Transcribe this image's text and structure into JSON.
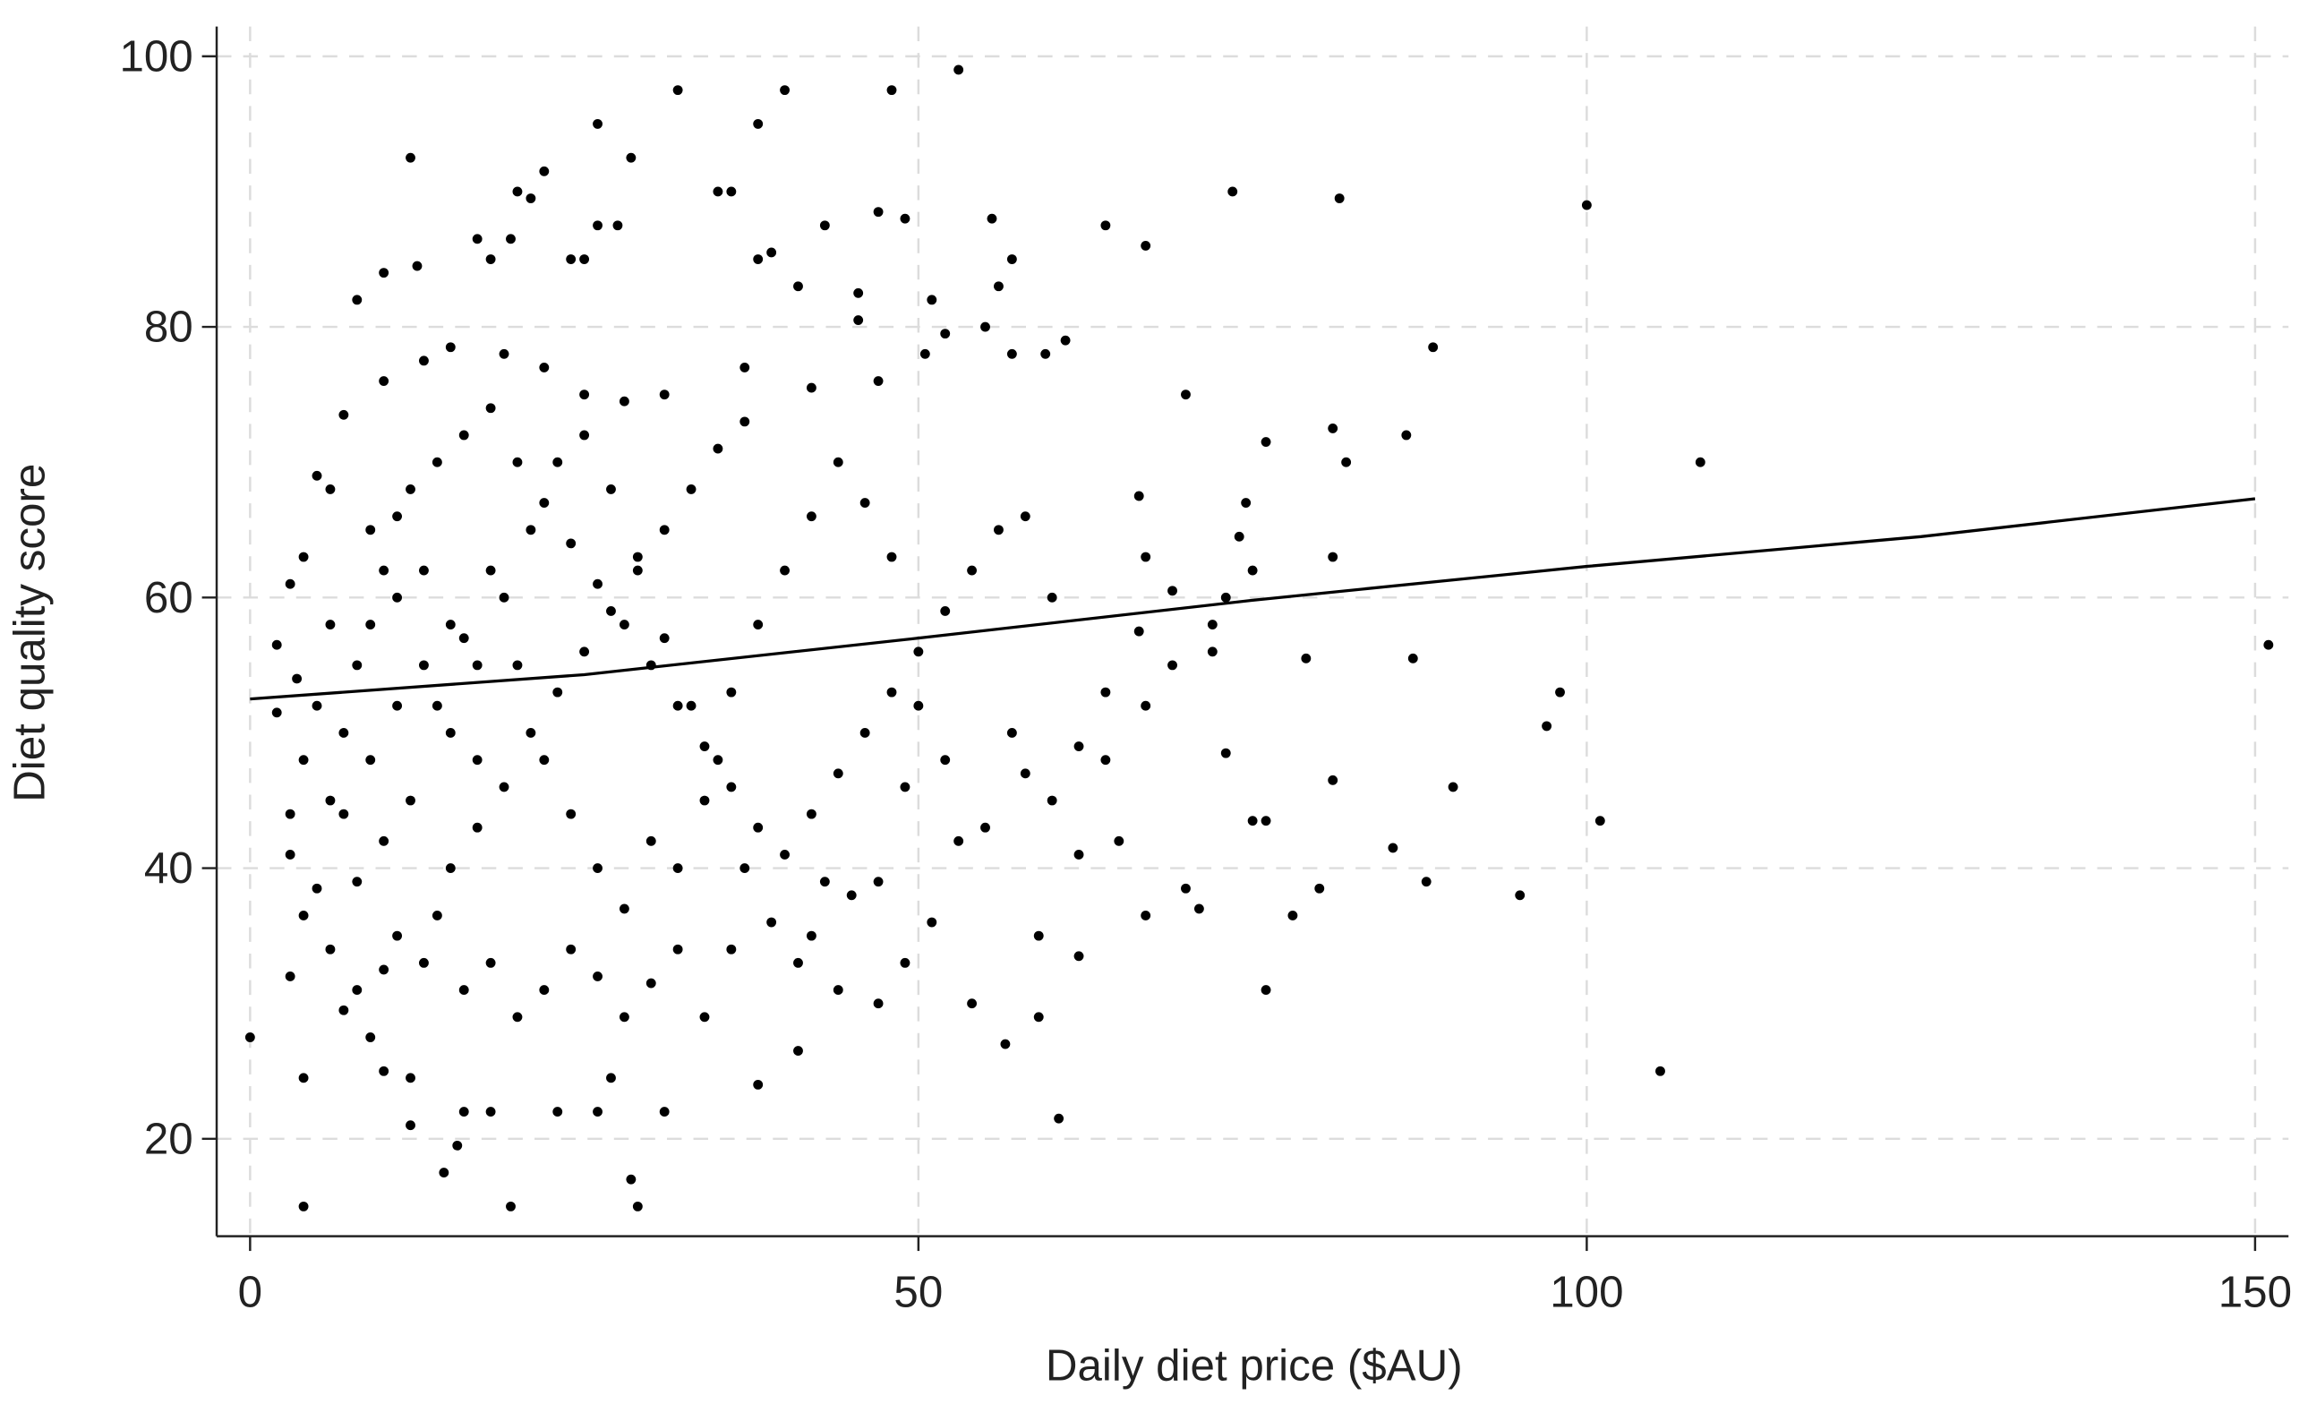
{
  "chart_data": {
    "type": "scatter",
    "x_label": "Daily diet price ($AU)",
    "y_label": "Diet quality score",
    "xlim": [
      -2.5,
      152.5
    ],
    "ylim": [
      12.8,
      102.2
    ],
    "xticks": [
      0,
      50,
      100,
      150
    ],
    "yticks": [
      20,
      40,
      60,
      80,
      100
    ],
    "grid": true,
    "series": [
      {
        "type": "scatter",
        "color": "#000000",
        "x": [
          0,
          4,
          29,
          19.5,
          28.5,
          14.5,
          15.5,
          12,
          16,
          18,
          23,
          26,
          31,
          4,
          10,
          12,
          27,
          38,
          41,
          60.5,
          56.5,
          54,
          59,
          76,
          105.5,
          95,
          88,
          78,
          80,
          67,
          71,
          70,
          62,
          85.5,
          90,
          101,
          97,
          98,
          81,
          75,
          76,
          73,
          87,
          79,
          65,
          64,
          67,
          72,
          69,
          72,
          73,
          75,
          74,
          74.5,
          76,
          70,
          81,
          82,
          86.5,
          88.5,
          81,
          66.5,
          67,
          69,
          66.5,
          100,
          81.5,
          73.5,
          67,
          64,
          108.5,
          151,
          53,
          48,
          40,
          32,
          38,
          26,
          12,
          28.5,
          22,
          20,
          21,
          47,
          49,
          43,
          55.5,
          26,
          27.5,
          17,
          19.5,
          18,
          24,
          25,
          8,
          10,
          12.5,
          35,
          36,
          38,
          39,
          41,
          45.5,
          51,
          57,
          56,
          45.5,
          52,
          55,
          57,
          59.5,
          61,
          47,
          50.5,
          42,
          37,
          31,
          28,
          25,
          22,
          19,
          15,
          13,
          10,
          7,
          5,
          6,
          3,
          2,
          3.5,
          2,
          4,
          3,
          3,
          5,
          4,
          6,
          3,
          7,
          9,
          8,
          10,
          11,
          13,
          14,
          16,
          18,
          20,
          22,
          24,
          26,
          28,
          30,
          32,
          34,
          36,
          15,
          17,
          19,
          21,
          23,
          25,
          27,
          29,
          31,
          33,
          35,
          37,
          9,
          11,
          13,
          15,
          17,
          12,
          10,
          8,
          6,
          7,
          8,
          9,
          10,
          11,
          12,
          14,
          16,
          18,
          20,
          22,
          24,
          26,
          28,
          30,
          32,
          34,
          36,
          38,
          40,
          42,
          44,
          46,
          48,
          50,
          52,
          54,
          56,
          58,
          60,
          62,
          57,
          55,
          52,
          49,
          47,
          45,
          43,
          41,
          39,
          37,
          35,
          33,
          31,
          29,
          27,
          25,
          23,
          21,
          19,
          17,
          15,
          13,
          11,
          9,
          7,
          5,
          6,
          4,
          14,
          16,
          18,
          20,
          22,
          24,
          26,
          28,
          30,
          32,
          34,
          36,
          38,
          40,
          42,
          44,
          46,
          48,
          50,
          53,
          58,
          60,
          62,
          64,
          49,
          47,
          44,
          42,
          51,
          59
        ],
        "values": [
          27.5,
          15,
          15,
          15,
          17,
          17.5,
          19.5,
          21,
          22,
          22,
          22,
          22,
          22,
          24.5,
          25,
          24.5,
          24.5,
          24,
          26.5,
          21.5,
          27,
          30,
          29,
          31,
          25,
          38,
          39,
          36.5,
          38.5,
          36.5,
          37,
          38.5,
          33.5,
          41.5,
          46,
          43.5,
          50.5,
          53,
          46.5,
          43.5,
          43.5,
          48.5,
          55.5,
          55.5,
          42,
          53,
          52,
          56,
          55,
          58,
          60,
          62,
          64.5,
          67,
          71.5,
          75,
          72.5,
          70,
          72,
          78.5,
          63,
          67.5,
          63,
          60.5,
          57.5,
          89,
          89.5,
          90,
          86,
          87.5,
          70,
          56.5,
          99,
          97.5,
          97.5,
          97.5,
          95,
          95,
          92.5,
          92.5,
          91.5,
          90,
          89.5,
          88.5,
          88,
          87.5,
          88,
          87.5,
          87.5,
          86.5,
          86.5,
          85,
          85,
          85,
          82,
          84,
          84.5,
          90,
          90,
          85,
          85.5,
          83,
          82.5,
          82,
          85,
          83,
          80.5,
          79.5,
          80,
          78,
          78,
          79,
          76,
          78,
          75.5,
          77,
          75,
          74.5,
          75,
          77,
          78,
          78.5,
          77.5,
          76,
          73.5,
          69,
          68,
          61,
          56.5,
          54,
          51.5,
          48,
          44,
          41,
          38.5,
          36.5,
          34,
          32,
          29.5,
          27.5,
          31,
          32.5,
          35,
          33,
          36.5,
          31,
          33,
          29,
          31,
          34,
          32,
          29,
          31.5,
          34,
          29,
          34,
          40,
          43,
          46,
          50,
          53,
          56,
          59,
          62,
          65,
          68,
          71,
          73,
          65,
          60,
          55,
          50,
          48,
          45,
          42,
          39,
          45,
          50,
          55,
          58,
          62,
          66,
          68,
          70,
          72,
          74,
          70,
          67,
          64,
          61,
          58,
          55,
          52,
          49,
          46,
          43,
          41,
          44,
          47,
          50,
          53,
          56,
          59,
          62,
          65,
          66,
          60,
          49,
          50,
          43,
          48,
          46,
          39,
          38,
          39,
          33,
          36,
          40,
          48,
          52,
          57,
          63,
          68,
          72,
          70,
          65,
          60,
          55,
          58,
          62,
          52,
          48,
          44,
          52,
          58,
          63,
          52,
          57,
          62,
          55,
          48,
          44,
          40,
          37,
          42,
          40,
          45,
          53,
          58,
          62,
          66,
          70,
          67,
          63,
          52,
          42,
          47,
          45,
          41,
          48,
          33,
          30,
          31,
          35,
          36,
          35
        ]
      },
      {
        "type": "line",
        "color": "#000000",
        "x": [
          0,
          25,
          50,
          75,
          100,
          125,
          150
        ],
        "values": [
          52.5,
          54.3,
          57,
          59.8,
          62.3,
          64.5,
          67.3
        ]
      }
    ]
  }
}
